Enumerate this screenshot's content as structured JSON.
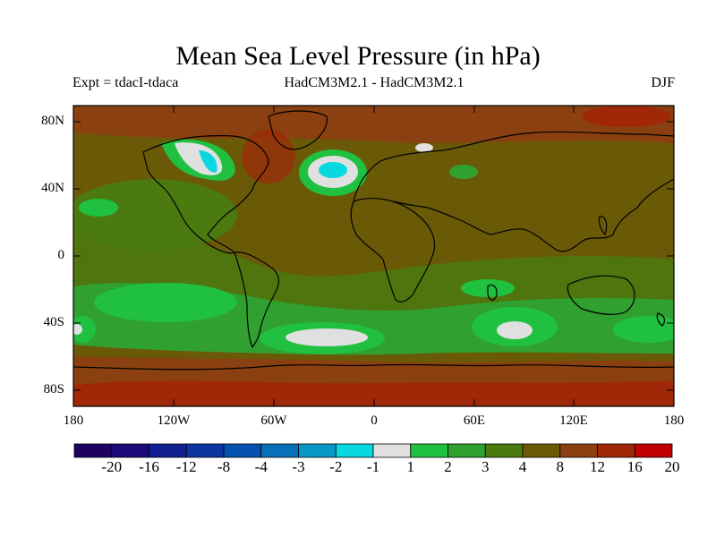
{
  "title": "Mean Sea Level Pressure (in hPa)",
  "subtitle_left": "Expt = tdacI-tdaca",
  "subtitle_center": "HadCM3M2.1 - HadCM3M2.1",
  "subtitle_right": "DJF",
  "lat_labels": [
    "80N",
    "40N",
    "0",
    "40S",
    "80S"
  ],
  "lon_labels": [
    "180",
    "120W",
    "60W",
    "0",
    "60E",
    "120E",
    "180"
  ],
  "colorbar": {
    "labels": [
      "-20",
      "-16",
      "-12",
      "-8",
      "-4",
      "-3",
      "-2",
      "-1",
      "1",
      "2",
      "3",
      "4",
      "8",
      "12",
      "16",
      "20"
    ],
    "colors": [
      "#1e0060",
      "#1a0a7a",
      "#102090",
      "#0a34a0",
      "#0650b0",
      "#0870b8",
      "#0898c8",
      "#08d8e0",
      "#e0e0e0",
      "#20c040",
      "#30a030",
      "#4a7a10",
      "#6a5a08",
      "#8a4010",
      "#a02808",
      "#c00000"
    ]
  },
  "colors": {
    "background_brown": "#6a5a08",
    "north_brown": "#8a4010",
    "polar_red": "#a02808",
    "mid_green": "#4a7a10",
    "green": "#30a030",
    "bright_green": "#20c040",
    "neutral": "#e0e0e0",
    "cyan": "#08d8e0"
  }
}
